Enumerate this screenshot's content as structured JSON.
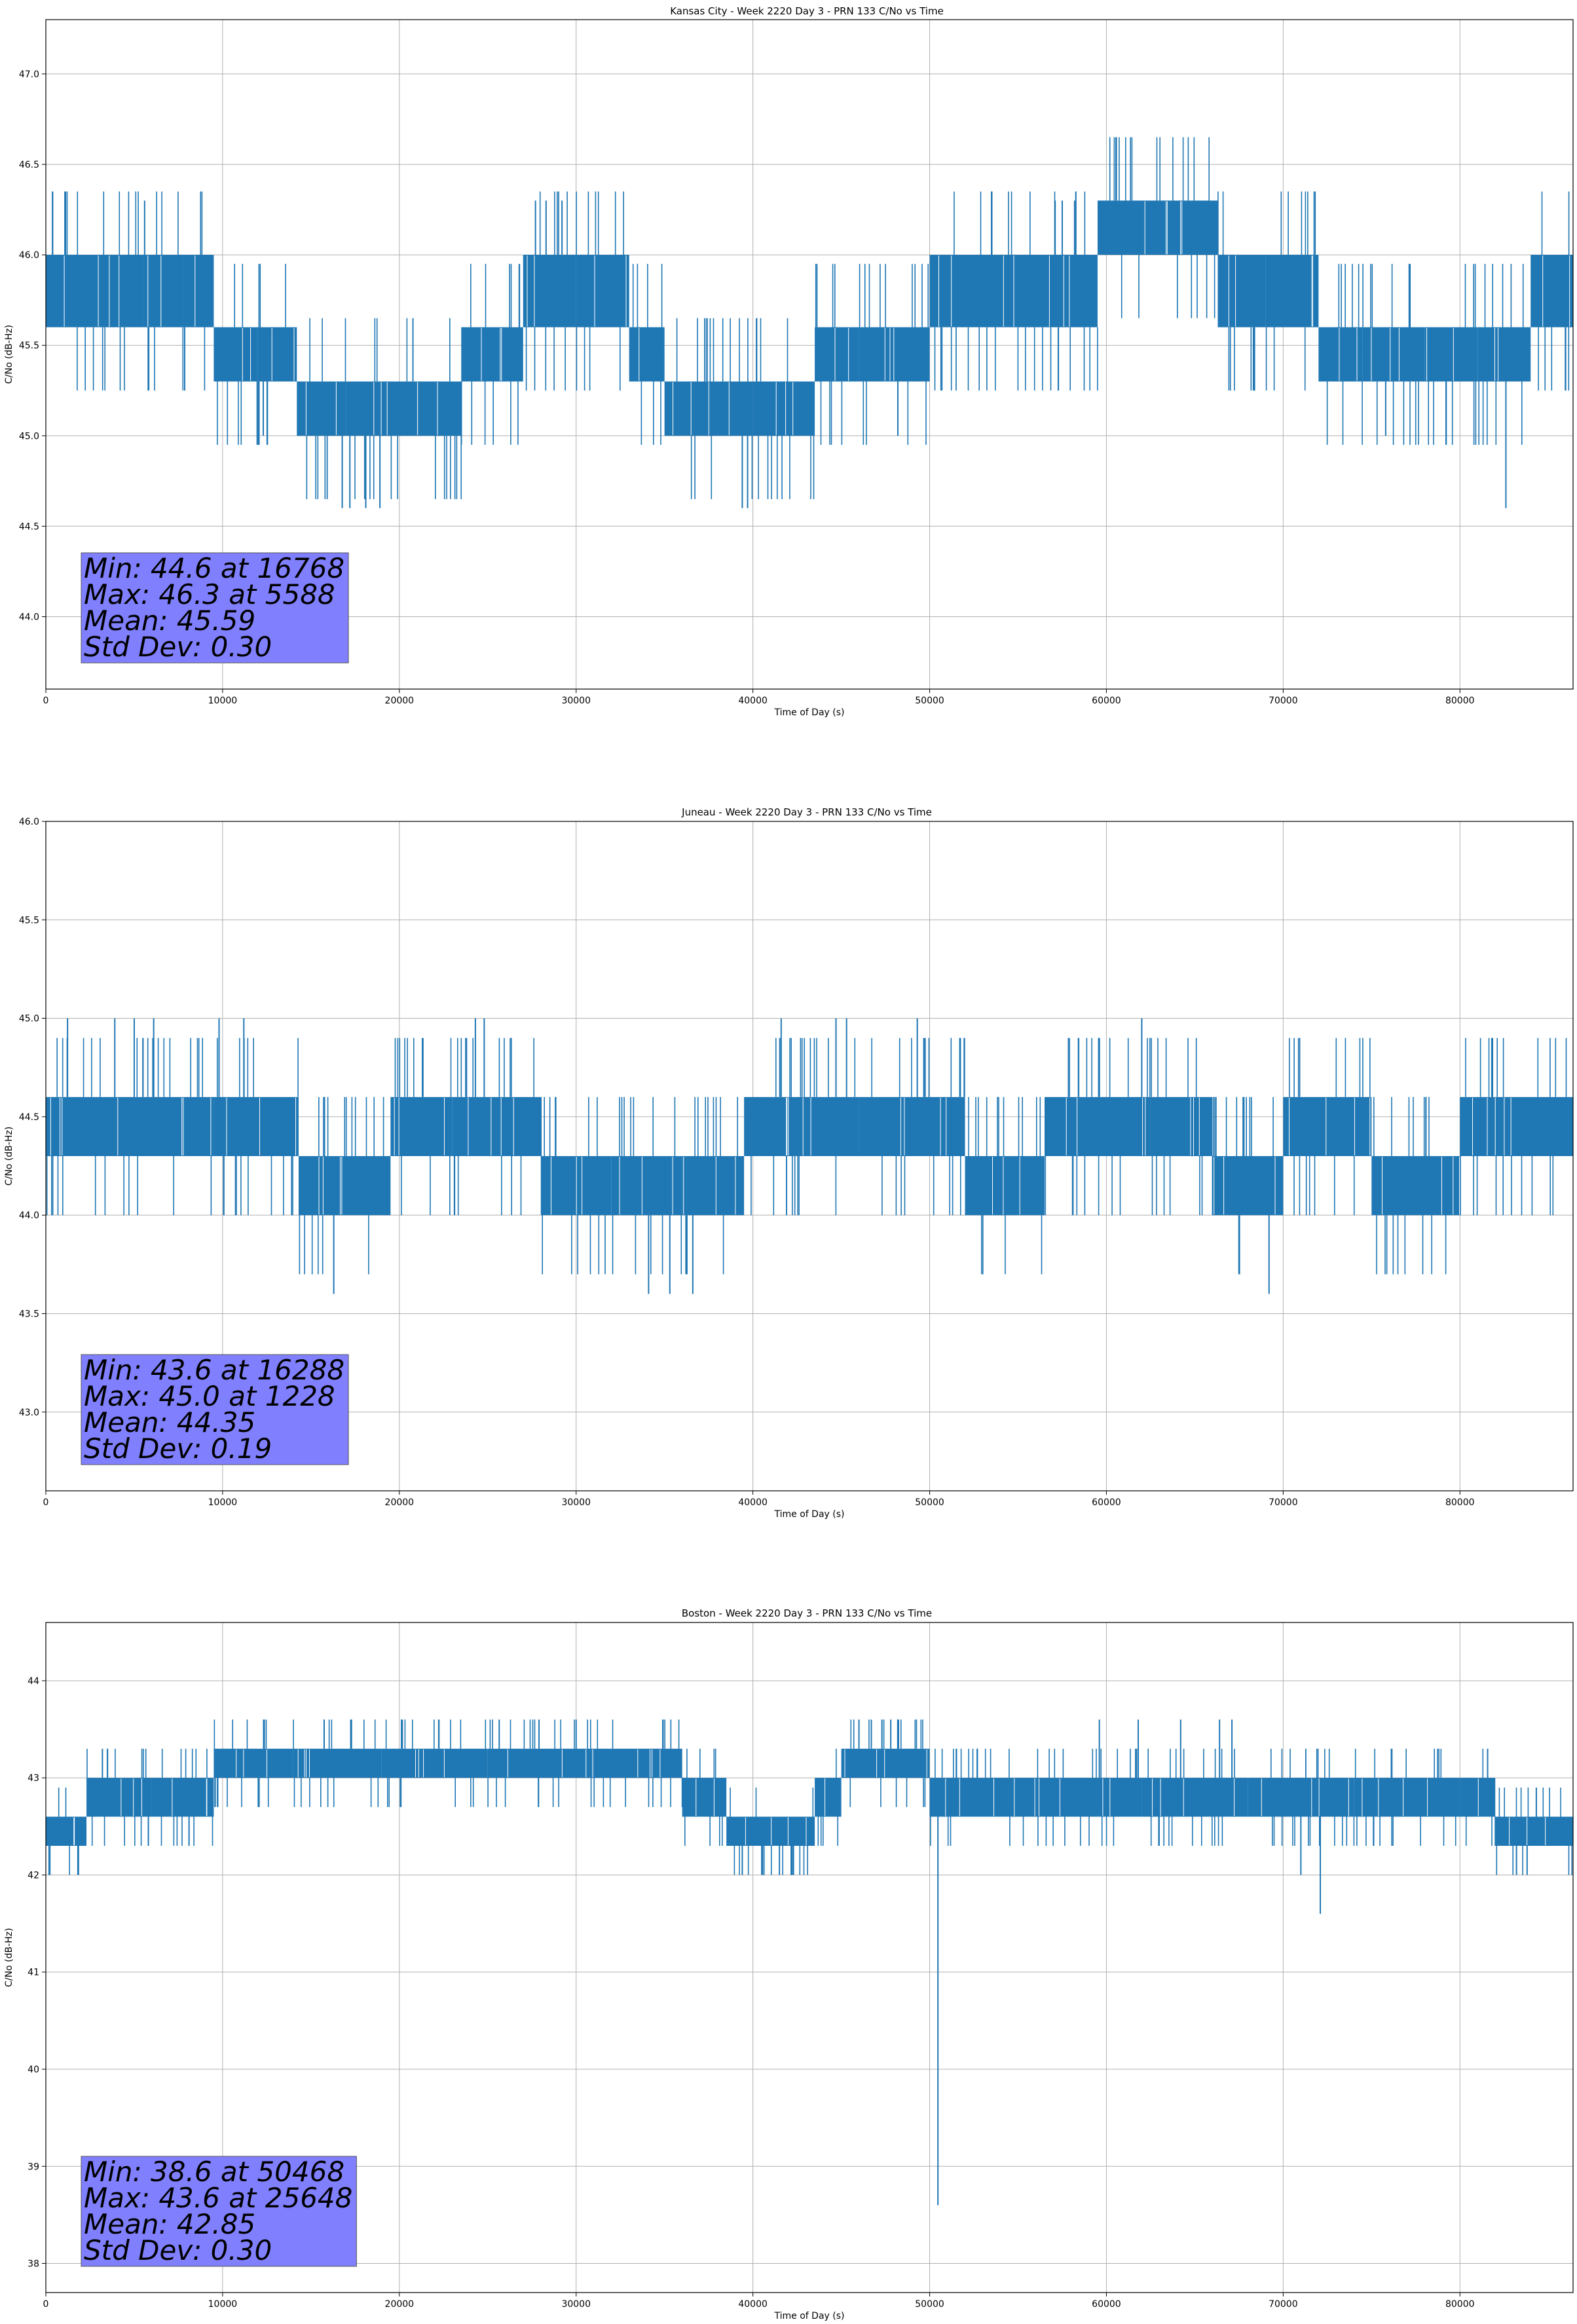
{
  "figure": {
    "background": "#ffffff",
    "line_color": "#1f77b4",
    "grid_color": "#b0b0b0",
    "stats_box_color": "#8080ff"
  },
  "chart_data": [
    {
      "type": "line",
      "title": "Kansas City - Week 2220 Day 3 - PRN 133 C/No vs Time",
      "xlabel": "Time of Day (s)",
      "ylabel": "C/No (dB-Hz)",
      "xlim": [
        0,
        86400
      ],
      "ylim": [
        43.6,
        47.3
      ],
      "xticks": [
        0,
        10000,
        20000,
        30000,
        40000,
        50000,
        60000,
        70000,
        80000
      ],
      "yticks": [
        44.0,
        44.5,
        45.0,
        45.5,
        46.0,
        46.5,
        47.0
      ],
      "ytick_labels": [
        "44.0",
        "44.5",
        "45.0",
        "45.5",
        "46.0",
        "46.5",
        "47.0"
      ],
      "grid": true,
      "quantization": 0.35,
      "segments": [
        {
          "x": [
            0,
            1500
          ],
          "levels": [
            45.6,
            46.0
          ]
        },
        {
          "x": [
            1500,
            5500
          ],
          "levels": [
            45.6,
            46.0
          ]
        },
        {
          "x": [
            5500,
            7800
          ],
          "levels": [
            45.6,
            46.0
          ]
        },
        {
          "x": [
            7800,
            9500
          ],
          "levels": [
            45.6,
            46.0
          ]
        },
        {
          "x": [
            9500,
            12000
          ],
          "levels": [
            45.3,
            45.6
          ]
        },
        {
          "x": [
            12000,
            14200
          ],
          "levels": [
            45.3,
            45.6
          ]
        },
        {
          "x": [
            14200,
            17000
          ],
          "levels": [
            45.0,
            45.3
          ]
        },
        {
          "x": [
            17000,
            21000
          ],
          "levels": [
            45.0,
            45.3
          ]
        },
        {
          "x": [
            21000,
            23500
          ],
          "levels": [
            45.0,
            45.3
          ]
        },
        {
          "x": [
            23500,
            27000
          ],
          "levels": [
            45.3,
            45.6
          ]
        },
        {
          "x": [
            27000,
            30000
          ],
          "levels": [
            45.6,
            46.0
          ]
        },
        {
          "x": [
            30000,
            33000
          ],
          "levels": [
            45.6,
            46.0
          ]
        },
        {
          "x": [
            33000,
            35000
          ],
          "levels": [
            45.3,
            45.6
          ]
        },
        {
          "x": [
            35000,
            37500
          ],
          "levels": [
            45.0,
            45.3
          ]
        },
        {
          "x": [
            37500,
            40000
          ],
          "levels": [
            45.0,
            45.3
          ]
        },
        {
          "x": [
            40000,
            43500
          ],
          "levels": [
            45.0,
            45.3
          ]
        },
        {
          "x": [
            43500,
            46000
          ],
          "levels": [
            45.3,
            45.6
          ]
        },
        {
          "x": [
            46000,
            50000
          ],
          "levels": [
            45.3,
            45.6
          ]
        },
        {
          "x": [
            50000,
            53000
          ],
          "levels": [
            45.6,
            46.0
          ]
        },
        {
          "x": [
            53000,
            56000
          ],
          "levels": [
            45.6,
            46.0
          ]
        },
        {
          "x": [
            56000,
            59500
          ],
          "levels": [
            45.6,
            46.0
          ]
        },
        {
          "x": [
            59500,
            66300
          ],
          "levels": [
            46.0,
            46.3
          ]
        },
        {
          "x": [
            66300,
            69000
          ],
          "levels": [
            45.6,
            46.0
          ]
        },
        {
          "x": [
            69000,
            72000
          ],
          "levels": [
            45.6,
            46.0
          ]
        },
        {
          "x": [
            72000,
            74500
          ],
          "levels": [
            45.3,
            45.6
          ]
        },
        {
          "x": [
            74500,
            78000
          ],
          "levels": [
            45.3,
            45.6
          ]
        },
        {
          "x": [
            78000,
            81000
          ],
          "levels": [
            45.3,
            45.6
          ]
        },
        {
          "x": [
            81000,
            84000
          ],
          "levels": [
            45.3,
            45.6
          ]
        },
        {
          "x": [
            84000,
            86400
          ],
          "levels": [
            45.6,
            46.0
          ]
        }
      ],
      "spikes": [
        {
          "x": 5588,
          "y": 46.3
        },
        {
          "x": 16768,
          "y": 44.6
        },
        {
          "x": 17200,
          "y": 44.6
        },
        {
          "x": 18100,
          "y": 44.6
        },
        {
          "x": 18900,
          "y": 44.6
        },
        {
          "x": 27700,
          "y": 46.3
        },
        {
          "x": 28300,
          "y": 46.3
        },
        {
          "x": 29200,
          "y": 46.3
        },
        {
          "x": 39400,
          "y": 44.6
        },
        {
          "x": 39700,
          "y": 44.6
        },
        {
          "x": 57100,
          "y": 46.3
        },
        {
          "x": 57500,
          "y": 46.3
        },
        {
          "x": 58200,
          "y": 46.3
        },
        {
          "x": 82600,
          "y": 44.6
        },
        {
          "x": 75800,
          "y": 45.0
        },
        {
          "x": 12300,
          "y": 45.0
        },
        {
          "x": 48200,
          "y": 45.0
        }
      ],
      "stats": {
        "min": "Min: 44.6 at 16768",
        "max": "Max: 46.3 at 5588",
        "mean": "Mean: 45.59",
        "std": "Std Dev: 0.30"
      }
    },
    {
      "type": "line",
      "title": "Juneau - Week 2220 Day 3 - PRN 133 C/No vs Time",
      "xlabel": "Time of Day (s)",
      "ylabel": "C/No (dB-Hz)",
      "xlim": [
        0,
        86400
      ],
      "ylim": [
        42.6,
        46.0
      ],
      "xticks": [
        0,
        10000,
        20000,
        30000,
        40000,
        50000,
        60000,
        70000,
        80000
      ],
      "yticks": [
        43.0,
        43.5,
        44.0,
        44.5,
        45.0,
        45.5,
        46.0
      ],
      "ytick_labels": [
        "43.0",
        "43.5",
        "44.0",
        "44.5",
        "45.0",
        "45.5",
        "46.0"
      ],
      "grid": true,
      "quantization": 0.3,
      "segments": [
        {
          "x": [
            0,
            4000
          ],
          "levels": [
            44.3,
            44.6
          ]
        },
        {
          "x": [
            4000,
            9500
          ],
          "levels": [
            44.3,
            44.6
          ]
        },
        {
          "x": [
            9500,
            14300
          ],
          "levels": [
            44.3,
            44.6
          ]
        },
        {
          "x": [
            14300,
            19500
          ],
          "levels": [
            44.0,
            44.3
          ]
        },
        {
          "x": [
            19500,
            23000
          ],
          "levels": [
            44.3,
            44.6
          ]
        },
        {
          "x": [
            23000,
            28000
          ],
          "levels": [
            44.3,
            44.6
          ]
        },
        {
          "x": [
            28000,
            32000
          ],
          "levels": [
            44.0,
            44.3
          ]
        },
        {
          "x": [
            32000,
            36000
          ],
          "levels": [
            44.0,
            44.3
          ]
        },
        {
          "x": [
            36000,
            39500
          ],
          "levels": [
            44.0,
            44.3
          ]
        },
        {
          "x": [
            39500,
            46000
          ],
          "levels": [
            44.3,
            44.6
          ]
        },
        {
          "x": [
            46000,
            52000
          ],
          "levels": [
            44.3,
            44.6
          ]
        },
        {
          "x": [
            52000,
            56500
          ],
          "levels": [
            44.0,
            44.3
          ]
        },
        {
          "x": [
            56500,
            62500
          ],
          "levels": [
            44.3,
            44.6
          ]
        },
        {
          "x": [
            62500,
            66000
          ],
          "levels": [
            44.3,
            44.6
          ]
        },
        {
          "x": [
            66000,
            70000
          ],
          "levels": [
            44.0,
            44.3
          ]
        },
        {
          "x": [
            70000,
            75000
          ],
          "levels": [
            44.3,
            44.6
          ]
        },
        {
          "x": [
            75000,
            80000
          ],
          "levels": [
            44.0,
            44.3
          ]
        },
        {
          "x": [
            80000,
            86400
          ],
          "levels": [
            44.3,
            44.6
          ]
        }
      ],
      "spikes": [
        {
          "x": 1228,
          "y": 45.0
        },
        {
          "x": 3900,
          "y": 45.0
        },
        {
          "x": 5000,
          "y": 45.0
        },
        {
          "x": 6100,
          "y": 45.0
        },
        {
          "x": 9800,
          "y": 45.0
        },
        {
          "x": 11200,
          "y": 45.0
        },
        {
          "x": 16288,
          "y": 43.6
        },
        {
          "x": 24300,
          "y": 45.0
        },
        {
          "x": 24800,
          "y": 45.0
        },
        {
          "x": 34100,
          "y": 43.6
        },
        {
          "x": 35300,
          "y": 43.6
        },
        {
          "x": 36600,
          "y": 43.6
        },
        {
          "x": 41600,
          "y": 45.0
        },
        {
          "x": 44700,
          "y": 45.0
        },
        {
          "x": 45300,
          "y": 45.0
        },
        {
          "x": 49300,
          "y": 45.0
        },
        {
          "x": 62000,
          "y": 45.0
        },
        {
          "x": 69200,
          "y": 43.6
        }
      ],
      "stats": {
        "min": "Min: 43.6 at 16288",
        "max": "Max: 45.0 at 1228",
        "mean": "Mean: 44.35",
        "std": "Std Dev: 0.19"
      }
    },
    {
      "type": "line",
      "title": "Boston - Week 2220 Day 3 - PRN 133 C/No vs Time",
      "xlabel": "Time of Day (s)",
      "ylabel": "C/No (dB-Hz)",
      "xlim": [
        0,
        86400
      ],
      "ylim": [
        37.7,
        44.6
      ],
      "xticks": [
        0,
        10000,
        20000,
        30000,
        40000,
        50000,
        60000,
        70000,
        80000
      ],
      "yticks": [
        38,
        39,
        40,
        41,
        42,
        43,
        44
      ],
      "ytick_labels": [
        "38",
        "39",
        "40",
        "41",
        "42",
        "43",
        "44"
      ],
      "grid": true,
      "quantization": 0.3,
      "segments": [
        {
          "x": [
            0,
            2300
          ],
          "levels": [
            42.3,
            42.6
          ]
        },
        {
          "x": [
            2300,
            6000
          ],
          "levels": [
            42.6,
            43.0
          ]
        },
        {
          "x": [
            6000,
            9500
          ],
          "levels": [
            42.6,
            43.0
          ]
        },
        {
          "x": [
            9500,
            14000
          ],
          "levels": [
            43.0,
            43.3
          ]
        },
        {
          "x": [
            14000,
            19000
          ],
          "levels": [
            43.0,
            43.3
          ]
        },
        {
          "x": [
            19000,
            25000
          ],
          "levels": [
            43.0,
            43.3
          ]
        },
        {
          "x": [
            25000,
            31000
          ],
          "levels": [
            43.0,
            43.3
          ]
        },
        {
          "x": [
            31000,
            36000
          ],
          "levels": [
            43.0,
            43.3
          ]
        },
        {
          "x": [
            36000,
            38500
          ],
          "levels": [
            42.6,
            43.0
          ]
        },
        {
          "x": [
            38500,
            43500
          ],
          "levels": [
            42.3,
            42.6
          ]
        },
        {
          "x": [
            43500,
            45000
          ],
          "levels": [
            42.6,
            43.0
          ]
        },
        {
          "x": [
            45000,
            50000
          ],
          "levels": [
            43.0,
            43.3
          ]
        },
        {
          "x": [
            50000,
            55000
          ],
          "levels": [
            42.6,
            43.0
          ]
        },
        {
          "x": [
            55000,
            62000
          ],
          "levels": [
            42.6,
            43.0
          ]
        },
        {
          "x": [
            62000,
            68000
          ],
          "levels": [
            42.6,
            43.0
          ]
        },
        {
          "x": [
            68000,
            74000
          ],
          "levels": [
            42.6,
            43.0
          ]
        },
        {
          "x": [
            74000,
            80000
          ],
          "levels": [
            42.6,
            43.0
          ]
        },
        {
          "x": [
            80000,
            82000
          ],
          "levels": [
            42.6,
            43.0
          ]
        },
        {
          "x": [
            82000,
            86400
          ],
          "levels": [
            42.3,
            42.6
          ]
        }
      ],
      "spikes": [
        {
          "x": 25648,
          "y": 43.6
        },
        {
          "x": 27900,
          "y": 43.6
        },
        {
          "x": 30000,
          "y": 43.6
        },
        {
          "x": 46000,
          "y": 43.6
        },
        {
          "x": 46700,
          "y": 43.6
        },
        {
          "x": 47300,
          "y": 43.6
        },
        {
          "x": 47800,
          "y": 43.6
        },
        {
          "x": 50468,
          "y": 38.6
        },
        {
          "x": 59600,
          "y": 43.6
        },
        {
          "x": 61800,
          "y": 43.6
        },
        {
          "x": 64200,
          "y": 43.6
        },
        {
          "x": 66400,
          "y": 43.6
        },
        {
          "x": 67100,
          "y": 43.6
        },
        {
          "x": 72100,
          "y": 41.6
        },
        {
          "x": 39400,
          "y": 42.0
        },
        {
          "x": 40500,
          "y": 42.0
        },
        {
          "x": 41500,
          "y": 42.0
        },
        {
          "x": 71000,
          "y": 42.0
        },
        {
          "x": 83200,
          "y": 42.0
        },
        {
          "x": 83800,
          "y": 42.0
        },
        {
          "x": 5800,
          "y": 42.3
        },
        {
          "x": 8100,
          "y": 42.3
        },
        {
          "x": 3200,
          "y": 43.3
        }
      ],
      "stats": {
        "min": "Min: 38.6 at 50468",
        "max": "Max: 43.6 at 25648",
        "mean": "Mean: 42.85",
        "std": "Std Dev: 0.30"
      }
    }
  ]
}
